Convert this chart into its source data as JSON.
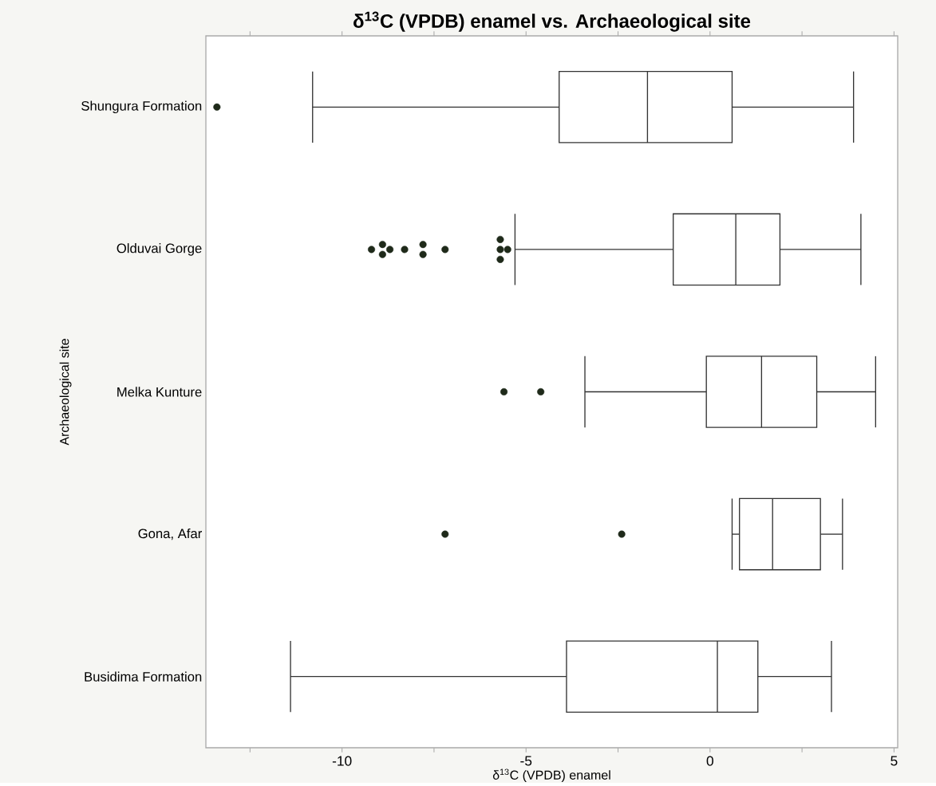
{
  "chart_data": {
    "type": "box",
    "orientation": "horizontal",
    "title": "δ$^{13}$C (VPDB) enamel vs. Archaeological site",
    "xlabel": "δ$^{13}$C (VPDB) enamel",
    "ylabel": "Archaeological site",
    "categories": [
      "Shungura Formation",
      "Olduvai Gorge",
      "Melka Kunture",
      "Gona, Afar",
      "Busidima Formation"
    ],
    "color": "#333333",
    "boxes": [
      {
        "low": -10.8,
        "q1": -4.1,
        "median": -1.7,
        "q3": 0.6,
        "high": 3.9,
        "outliers": [
          -13.4
        ]
      },
      {
        "low": -5.3,
        "q1": -1.0,
        "median": 0.7,
        "q3": 1.9,
        "high": 4.1,
        "outliers": [
          -9.2,
          -8.9,
          -8.9,
          -8.7,
          -8.3,
          -7.8,
          -7.8,
          -7.2,
          -5.7,
          -5.7,
          -5.7,
          -5.5
        ]
      },
      {
        "low": -3.4,
        "q1": -0.1,
        "median": 1.4,
        "q3": 2.9,
        "high": 4.5,
        "outliers": [
          -5.6,
          -4.6
        ]
      },
      {
        "low": 0.6,
        "q1": 0.8,
        "median": 1.7,
        "q3": 3.0,
        "high": 3.6,
        "outliers": [
          -7.2,
          -2.4
        ]
      },
      {
        "low": -11.4,
        "q1": -3.9,
        "median": 0.2,
        "q3": 1.3,
        "high": 3.3
      }
    ],
    "xlim": [
      -13.7,
      5.1
    ],
    "xticks": [
      {
        "value": -12.5,
        "label": null
      },
      -10,
      {
        "value": -7.5,
        "label": null
      },
      -5,
      {
        "value": -2.5,
        "label": null
      },
      0,
      {
        "value": 2.5,
        "label": null
      },
      5
    ],
    "grid": false
  }
}
